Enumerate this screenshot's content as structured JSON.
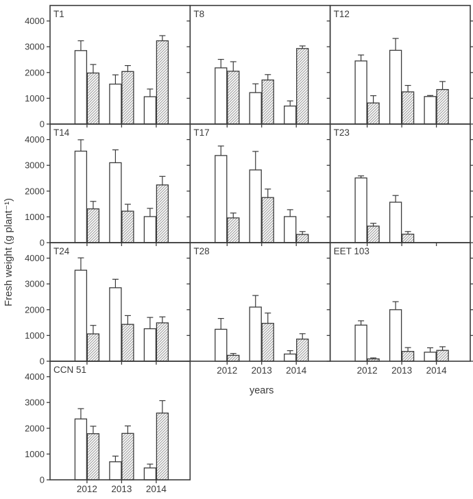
{
  "chart_data": {
    "type": "bar",
    "title": "",
    "ylabel": "Fresh weight (g plant⁻¹)",
    "xlabel": "years",
    "categories": [
      "2012",
      "2013",
      "2014"
    ],
    "yticks": [
      0,
      1000,
      2000,
      3000,
      4000
    ],
    "ylim": [
      0,
      4600
    ],
    "grid": false,
    "legend_position": "none",
    "series_styles": [
      {
        "name": "open-bar",
        "fill": "white-outline"
      },
      {
        "name": "hatched-bar",
        "fill": "diagonal-hatch"
      }
    ],
    "panels": [
      {
        "label": "T1",
        "open": [
          2850,
          1550,
          1060
        ],
        "open_err": [
          380,
          360,
          300
        ],
        "hatched": [
          1980,
          2040,
          3230
        ],
        "hatched_err": [
          330,
          230,
          200
        ]
      },
      {
        "label": "T8",
        "open": [
          2180,
          1220,
          700
        ],
        "open_err": [
          330,
          340,
          200
        ],
        "hatched": [
          2050,
          1710,
          2930
        ],
        "hatched_err": [
          370,
          210,
          100
        ]
      },
      {
        "label": "T12",
        "open": [
          2450,
          2860,
          1070
        ],
        "open_err": [
          230,
          460,
          40
        ],
        "hatched": [
          820,
          1250,
          1340
        ],
        "hatched_err": [
          280,
          250,
          310
        ]
      },
      {
        "label": "T14",
        "open": [
          3550,
          3100,
          1010
        ],
        "open_err": [
          440,
          500,
          320
        ],
        "hatched": [
          1310,
          1220,
          2240
        ],
        "hatched_err": [
          290,
          270,
          330
        ]
      },
      {
        "label": "T17",
        "open": [
          3380,
          2820,
          1010
        ],
        "open_err": [
          370,
          720,
          270
        ],
        "hatched": [
          960,
          1750,
          320
        ],
        "hatched_err": [
          190,
          330,
          110
        ]
      },
      {
        "label": "T23",
        "open": [
          2510,
          1570,
          null
        ],
        "open_err": [
          80,
          260,
          null
        ],
        "hatched": [
          640,
          330,
          null
        ],
        "hatched_err": [
          110,
          100,
          null
        ]
      },
      {
        "label": "T24",
        "open": [
          3530,
          2850,
          1260
        ],
        "open_err": [
          480,
          330,
          440
        ],
        "hatched": [
          1060,
          1430,
          1490
        ],
        "hatched_err": [
          330,
          340,
          230
        ]
      },
      {
        "label": "T28",
        "open": [
          1240,
          2100,
          280
        ],
        "open_err": [
          420,
          450,
          130
        ],
        "hatched": [
          230,
          1470,
          860
        ],
        "hatched_err": [
          70,
          400,
          210
        ]
      },
      {
        "label": "EET 103",
        "open": [
          1400,
          2000,
          350
        ],
        "open_err": [
          170,
          310,
          170
        ],
        "hatched": [
          90,
          380,
          420
        ],
        "hatched_err": [
          40,
          150,
          140
        ]
      },
      {
        "label": "CCN 51",
        "open": [
          2360,
          700,
          460
        ],
        "open_err": [
          400,
          220,
          150
        ],
        "hatched": [
          1790,
          1800,
          2590
        ],
        "hatched_err": [
          290,
          290,
          480
        ]
      }
    ],
    "layout_hint": {
      "columns": 3,
      "rows": 4,
      "last_row_panel_count": 1,
      "x_tick_labels_shown_under": [
        "CCN 51",
        "T28",
        "EET 103"
      ]
    }
  },
  "colors": {
    "axis": "#3a3a3a",
    "text": "#3a3a3a",
    "bar_fill": "#ffffff",
    "hatch_line": "#999999",
    "hatch_bg": "#fcfcfc",
    "background": "#ffffff"
  }
}
